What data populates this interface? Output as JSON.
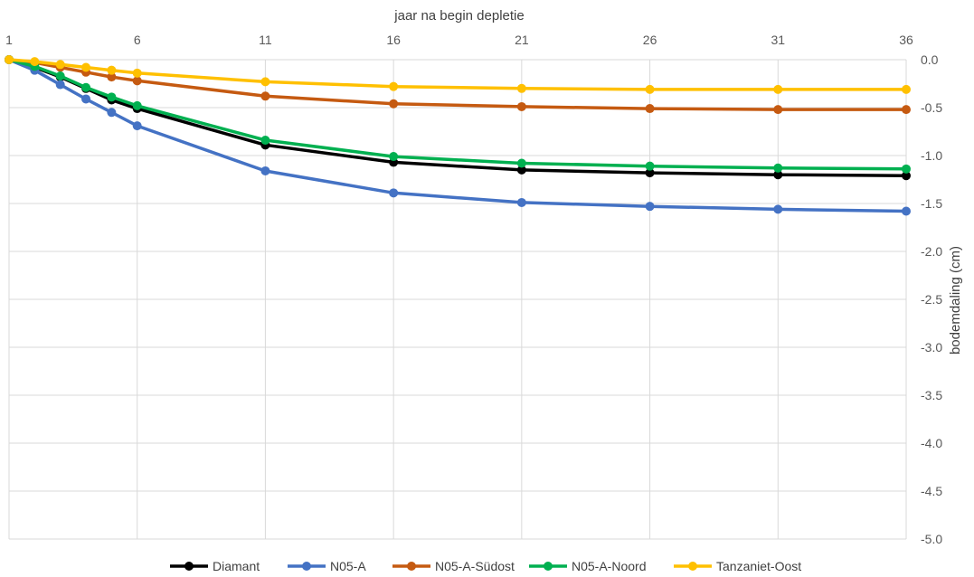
{
  "chart_data": {
    "type": "line",
    "title": "",
    "xlabel": "jaar na begin depletie",
    "ylabel": "bodemdaling (cm)",
    "x": [
      1,
      2,
      3,
      4,
      5,
      6,
      11,
      16,
      21,
      26,
      31,
      36
    ],
    "xticks": [
      1,
      6,
      11,
      16,
      21,
      26,
      31,
      36
    ],
    "xticklabels": [
      "1",
      "6",
      "11",
      "16",
      "21",
      "26",
      "31",
      "36"
    ],
    "xlim": [
      1,
      36
    ],
    "ylim": [
      -5.0,
      0.0
    ],
    "yticks": [
      0.0,
      -0.5,
      -1.0,
      -1.5,
      -2.0,
      -2.5,
      -3.0,
      -3.5,
      -4.0,
      -4.5,
      -5.0
    ],
    "yticklabels": [
      "0.0",
      "-0.5",
      "-1.0",
      "-1.5",
      "-2.0",
      "-2.5",
      "-3.0",
      "-3.5",
      "-4.0",
      "-4.5",
      "-5.0"
    ],
    "x_axis_position": "top",
    "y_axis_position": "right",
    "grid": true,
    "legend_position": "bottom",
    "series": [
      {
        "name": "Diamant",
        "color": "#000000",
        "values": [
          0.0,
          -0.08,
          -0.18,
          -0.3,
          -0.42,
          -0.51,
          -0.89,
          -1.07,
          -1.15,
          -1.18,
          -1.2,
          -1.21
        ]
      },
      {
        "name": "N05-A",
        "color": "#4472C4",
        "values": [
          0.0,
          -0.11,
          -0.26,
          -0.41,
          -0.55,
          -0.69,
          -1.16,
          -1.39,
          -1.49,
          -1.53,
          -1.56,
          -1.58
        ]
      },
      {
        "name": "N05-A-Südost",
        "color": "#C55A11",
        "values": [
          0.0,
          -0.03,
          -0.08,
          -0.13,
          -0.18,
          -0.22,
          -0.38,
          -0.46,
          -0.49,
          -0.51,
          -0.52,
          -0.52
        ]
      },
      {
        "name": "N05-A-Noord",
        "color": "#00B050",
        "values": [
          0.0,
          -0.07,
          -0.17,
          -0.29,
          -0.39,
          -0.48,
          -0.84,
          -1.01,
          -1.08,
          -1.11,
          -1.13,
          -1.14
        ]
      },
      {
        "name": "Tanzaniet-Oost",
        "color": "#FFC000",
        "values": [
          0.0,
          -0.02,
          -0.05,
          -0.08,
          -0.11,
          -0.14,
          -0.23,
          -0.28,
          -0.3,
          -0.31,
          -0.31,
          -0.31
        ]
      }
    ]
  }
}
